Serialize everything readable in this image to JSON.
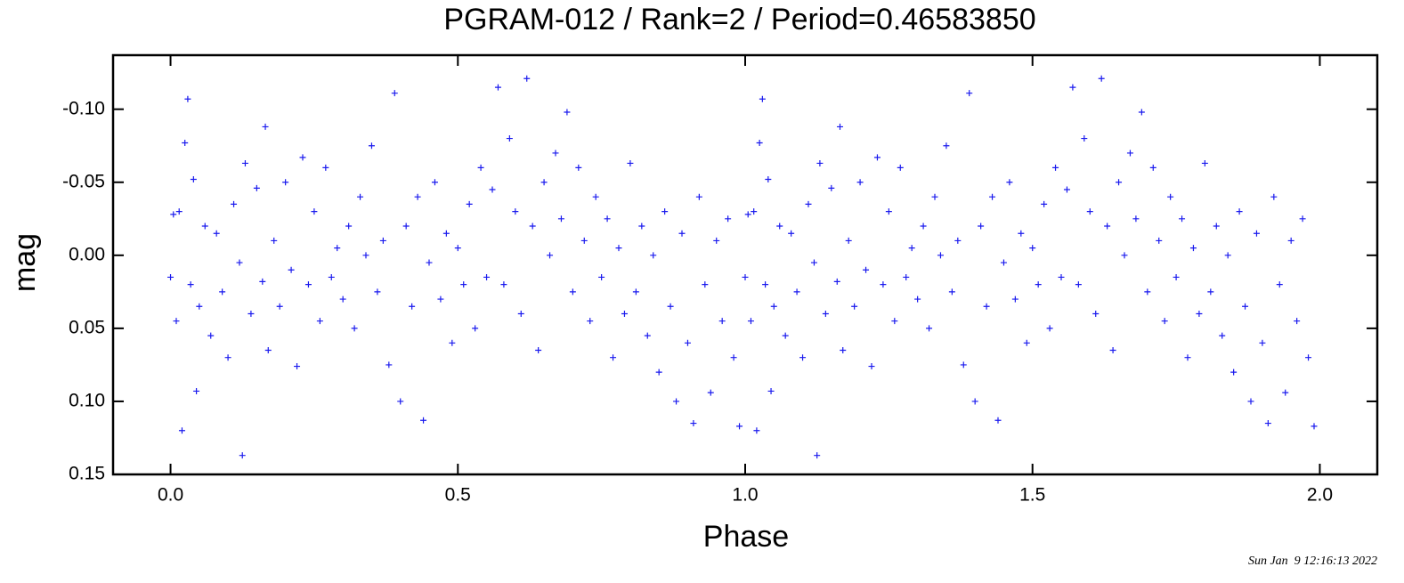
{
  "chart_data": {
    "type": "scatter",
    "title": "PGRAM-012 / Rank=2 / Period=0.46583850",
    "x_label": "Phase",
    "y_label": "mag",
    "timestamp": "Sun Jan  9 12:16:13 2022",
    "color": "#1a1aee",
    "y_inverted": true,
    "xlim": [
      -0.1,
      2.1
    ],
    "ylim": [
      0.15,
      -0.137
    ],
    "xticks": [
      {
        "value": 0,
        "label": "0.0"
      },
      0.5,
      {
        "value": 1,
        "label": "1.0"
      },
      1.5,
      {
        "value": 2,
        "label": "2.0"
      }
    ],
    "yticks": [
      {
        "value": -0.1,
        "label": "-0.10"
      },
      -0.05,
      {
        "value": 0,
        "label": "0.00"
      },
      0.05,
      {
        "value": 0.1,
        "label": "0.10"
      },
      0.15
    ],
    "x": [
      0,
      0.005,
      0.01,
      0.015,
      0.02,
      0.025,
      0.03,
      0.035,
      0.04,
      0.045,
      0.05,
      0.06,
      0.07,
      0.08,
      0.09,
      0.1,
      0.11,
      0.12,
      0.125,
      0.13,
      0.14,
      0.15,
      0.16,
      0.165,
      0.17,
      0.18,
      0.19,
      0.2,
      0.21,
      0.22,
      0.23,
      0.24,
      0.25,
      0.26,
      0.27,
      0.28,
      0.29,
      0.3,
      0.31,
      0.32,
      0.33,
      0.34,
      0.35,
      0.36,
      0.37,
      0.38,
      0.39,
      0.4,
      0.41,
      0.42,
      0.43,
      0.44,
      0.45,
      0.46,
      0.47,
      0.48,
      0.49,
      0.5,
      0.51,
      0.52,
      0.53,
      0.54,
      0.55,
      0.56,
      0.57,
      0.58,
      0.59,
      0.6,
      0.61,
      0.62,
      0.63,
      0.64,
      0.65,
      0.66,
      0.67,
      0.68,
      0.69,
      0.7,
      0.71,
      0.72,
      0.73,
      0.74,
      0.75,
      0.76,
      0.77,
      0.78,
      0.79,
      0.8,
      0.81,
      0.82,
      0.83,
      0.84,
      0.85,
      0.86,
      0.87,
      0.88,
      0.89,
      0.9,
      0.91,
      0.92,
      0.93,
      0.94,
      0.95,
      0.96,
      0.97,
      0.98,
      0.99,
      1,
      1.005,
      1.01,
      1.015,
      1.02,
      1.025,
      1.03,
      1.035,
      1.04,
      1.045,
      1.05,
      1.06,
      1.07,
      1.08,
      1.09,
      1.1,
      1.11,
      1.12,
      1.125,
      1.13,
      1.14,
      1.15,
      1.16,
      1.165,
      1.17,
      1.18,
      1.19,
      1.2,
      1.21,
      1.22,
      1.23,
      1.24,
      1.25,
      1.26,
      1.27,
      1.28,
      1.29,
      1.3,
      1.31,
      1.32,
      1.33,
      1.34,
      1.35,
      1.36,
      1.37,
      1.38,
      1.39,
      1.4,
      1.41,
      1.42,
      1.43,
      1.44,
      1.45,
      1.46,
      1.47,
      1.48,
      1.49,
      1.5,
      1.51,
      1.52,
      1.53,
      1.54,
      1.55,
      1.56,
      1.57,
      1.58,
      1.59,
      1.6,
      1.61,
      1.62,
      1.63,
      1.64,
      1.65,
      1.66,
      1.67,
      1.68,
      1.69,
      1.7,
      1.71,
      1.72,
      1.73,
      1.74,
      1.75,
      1.76,
      1.77,
      1.78,
      1.79,
      1.8,
      1.81,
      1.82,
      1.83,
      1.84,
      1.85,
      1.86,
      1.87,
      1.88,
      1.89,
      1.9,
      1.91,
      1.92,
      1.93,
      1.94,
      1.95,
      1.96,
      1.97,
      1.98,
      1.99
    ],
    "values": [
      0.015,
      -0.028,
      0.045,
      -0.03,
      0.12,
      -0.077,
      -0.107,
      0.02,
      -0.052,
      0.093,
      0.035,
      -0.02,
      0.055,
      -0.015,
      0.025,
      0.07,
      -0.035,
      0.005,
      0.137,
      -0.063,
      0.04,
      -0.046,
      0.018,
      -0.088,
      0.065,
      -0.01,
      0.035,
      -0.05,
      0.01,
      0.076,
      -0.067,
      0.02,
      -0.03,
      0.045,
      -0.06,
      0.015,
      -0.005,
      0.03,
      -0.02,
      0.05,
      -0.04,
      0,
      -0.075,
      0.025,
      -0.01,
      0.075,
      -0.111,
      0.1,
      -0.02,
      0.035,
      -0.04,
      0.113,
      0.005,
      -0.05,
      0.03,
      -0.015,
      0.06,
      -0.005,
      0.02,
      -0.035,
      0.05,
      -0.06,
      0.015,
      -0.045,
      -0.115,
      0.02,
      -0.08,
      -0.03,
      0.04,
      -0.121,
      -0.02,
      0.065,
      -0.05,
      0,
      -0.07,
      -0.025,
      -0.098,
      0.025,
      -0.06,
      -0.01,
      0.045,
      -0.04,
      0.015,
      -0.025,
      0.07,
      -0.005,
      0.04,
      -0.063,
      0.025,
      -0.02,
      0.055,
      0,
      0.08,
      -0.03,
      0.035,
      0.1,
      -0.015,
      0.06,
      0.115,
      -0.04,
      0.02,
      0.094,
      -0.01,
      0.045,
      -0.025,
      0.07,
      0.117,
      0.015,
      -0.028,
      0.045,
      -0.03,
      0.12,
      -0.077,
      -0.107,
      0.02,
      -0.052,
      0.093,
      0.035,
      -0.02,
      0.055,
      -0.015,
      0.025,
      0.07,
      -0.035,
      0.005,
      0.137,
      -0.063,
      0.04,
      -0.046,
      0.018,
      -0.088,
      0.065,
      -0.01,
      0.035,
      -0.05,
      0.01,
      0.076,
      -0.067,
      0.02,
      -0.03,
      0.045,
      -0.06,
      0.015,
      -0.005,
      0.03,
      -0.02,
      0.05,
      -0.04,
      0,
      -0.075,
      0.025,
      -0.01,
      0.075,
      -0.111,
      0.1,
      -0.02,
      0.035,
      -0.04,
      0.113,
      0.005,
      -0.05,
      0.03,
      -0.015,
      0.06,
      -0.005,
      0.02,
      -0.035,
      0.05,
      -0.06,
      0.015,
      -0.045,
      -0.115,
      0.02,
      -0.08,
      -0.03,
      0.04,
      -0.121,
      -0.02,
      0.065,
      -0.05,
      0,
      -0.07,
      -0.025,
      -0.098,
      0.025,
      -0.06,
      -0.01,
      0.045,
      -0.04,
      0.015,
      -0.025,
      0.07,
      -0.005,
      0.04,
      -0.063,
      0.025,
      -0.02,
      0.055,
      0,
      0.08,
      -0.03,
      0.035,
      0.1,
      -0.015,
      0.06,
      0.115,
      -0.04,
      0.02,
      0.094,
      -0.01,
      0.045,
      -0.025,
      0.07,
      0.117
    ]
  }
}
